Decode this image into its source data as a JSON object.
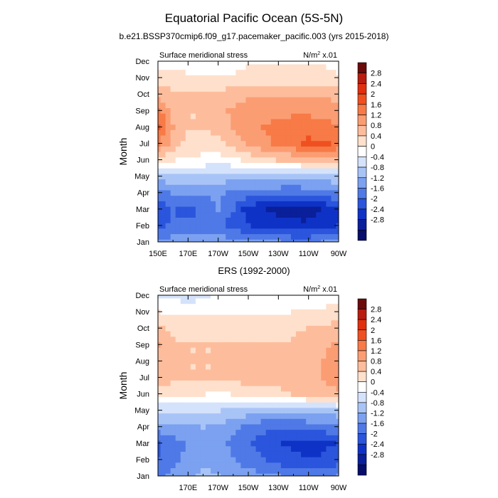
{
  "figure": {
    "title": "Equatorial Pacific Ocean (5S-5N)",
    "subtitle": "b.e21.BSSP370cmip6.f09_g17.pacemaker_pacific.003 (yrs 2015-2018)"
  },
  "chart_data": [
    {
      "type": "heatmap",
      "variable_label": "Surface meridional stress",
      "units_label": "N/m",
      "units_exp": "2",
      "units_scale": " x.01",
      "ylabel": "Month",
      "x_tick_labels": [
        "150E",
        "170E",
        "170W",
        "150W",
        "130W",
        "110W",
        "90W"
      ],
      "y_tick_labels": [
        "Jan",
        "Feb",
        "Mar",
        "Apr",
        "May",
        "Jun",
        "Jul",
        "Aug",
        "Sep",
        "Oct",
        "Nov",
        "Dec"
      ],
      "xlim": [
        150,
        270
      ],
      "levels": [
        -2.8,
        -2.4,
        -2,
        -1.6,
        -1.2,
        -0.8,
        -0.4,
        0,
        0.4,
        0.8,
        1.2,
        1.6,
        2,
        2.4,
        2.8
      ],
      "x": [
        150,
        160,
        170,
        180,
        190,
        200,
        210,
        220,
        230,
        240,
        250,
        260,
        270
      ],
      "months": [
        "Jan",
        "Feb",
        "Mar",
        "Apr",
        "May",
        "Jun",
        "Jul",
        "Aug",
        "Sep",
        "Oct",
        "Nov",
        "Dec"
      ],
      "values": [
        [
          -1.2,
          -1.0,
          -0.9,
          -0.9,
          -0.9,
          -1.0,
          -1.1,
          -1.2,
          -1.2,
          -1.3,
          -1.3,
          -1.2,
          -1.2
        ],
        [
          -1.7,
          -1.5,
          -1.5,
          -1.5,
          -1.5,
          -1.8,
          -2.0,
          -2.1,
          -2.2,
          -2.3,
          -2.3,
          -2.2,
          -2.0
        ],
        [
          -1.9,
          -1.6,
          -1.8,
          -1.4,
          -1.2,
          -1.6,
          -2.2,
          -2.4,
          -2.5,
          -2.6,
          -2.6,
          -2.4,
          -2.1
        ],
        [
          -1.4,
          -1.2,
          -1.2,
          -1.2,
          -1.1,
          -1.3,
          -1.4,
          -1.5,
          -1.5,
          -1.5,
          -1.4,
          -1.3,
          -1.3
        ],
        [
          -0.6,
          -0.5,
          -0.5,
          -0.6,
          -0.6,
          -0.6,
          -0.6,
          -0.6,
          -0.6,
          -0.7,
          -0.7,
          -0.6,
          -0.5
        ],
        [
          0.6,
          0.4,
          0.3,
          0.3,
          0.2,
          0.3,
          0.5,
          0.7,
          0.8,
          0.9,
          1.0,
          1.0,
          0.9
        ],
        [
          1.6,
          1.0,
          0.7,
          0.6,
          0.7,
          0.9,
          1.3,
          1.5,
          1.7,
          1.9,
          2.1,
          2.1,
          1.9
        ],
        [
          2.1,
          1.2,
          0.8,
          0.8,
          0.9,
          1.3,
          1.5,
          1.6,
          1.7,
          1.8,
          1.8,
          1.7,
          1.6
        ],
        [
          1.7,
          1.1,
          0.8,
          0.8,
          1.0,
          1.3,
          1.4,
          1.5,
          1.5,
          1.5,
          1.5,
          1.5,
          1.4
        ],
        [
          1.1,
          0.9,
          0.8,
          0.8,
          0.9,
          1.0,
          1.1,
          1.1,
          1.1,
          1.1,
          1.1,
          1.1,
          1.0
        ],
        [
          0.6,
          0.6,
          0.5,
          0.5,
          0.5,
          0.5,
          0.6,
          0.6,
          0.6,
          0.6,
          0.6,
          0.6,
          0.5
        ],
        [
          0.1,
          0.2,
          0.2,
          0.2,
          0.2,
          0.2,
          0.3,
          0.3,
          0.3,
          0.3,
          0.3,
          0.3,
          0.2
        ]
      ]
    },
    {
      "type": "heatmap",
      "title": "ERS (1992-2000)",
      "variable_label": "Surface meridional stress",
      "units_label": "N/m",
      "units_exp": "2",
      "units_scale": " x.01",
      "ylabel": "Month",
      "x_tick_labels": [
        "",
        "170E",
        "170W",
        "150W",
        "130W",
        "110W",
        "90W"
      ],
      "y_tick_labels": [
        "Jan",
        "Feb",
        "Mar",
        "Apr",
        "May",
        "Jun",
        "Jul",
        "Aug",
        "Sep",
        "Oct",
        "Nov",
        "Dec"
      ],
      "xlim": [
        150,
        270
      ],
      "levels": [
        -2.8,
        -2.4,
        -2,
        -1.6,
        -1.2,
        -0.8,
        -0.4,
        0,
        0.4,
        0.8,
        1.2,
        1.6,
        2,
        2.4,
        2.8
      ],
      "x": [
        150,
        160,
        170,
        180,
        190,
        200,
        210,
        220,
        230,
        240,
        250,
        260,
        270
      ],
      "months": [
        "Jan",
        "Feb",
        "Mar",
        "Apr",
        "May",
        "Jun",
        "Jul",
        "Aug",
        "Sep",
        "Oct",
        "Nov",
        "Dec"
      ],
      "values": [
        [
          -1.3,
          -1.0,
          -0.9,
          -0.7,
          -0.8,
          -0.9,
          -1.0,
          -1.1,
          -1.2,
          -1.3,
          -1.3,
          -1.3,
          -1.2
        ],
        [
          -1.6,
          -1.3,
          -1.1,
          -0.9,
          -1.0,
          -1.2,
          -1.4,
          -1.6,
          -1.8,
          -1.9,
          -2.0,
          -1.9,
          -1.8
        ],
        [
          -1.7,
          -1.4,
          -1.2,
          -0.9,
          -1.0,
          -1.3,
          -1.6,
          -1.8,
          -2.0,
          -2.1,
          -2.2,
          -2.1,
          -2.0
        ],
        [
          -1.0,
          -0.9,
          -0.9,
          -0.8,
          -0.9,
          -1.1,
          -1.3,
          -1.5,
          -1.6,
          -1.6,
          -1.5,
          -1.4,
          -1.3
        ],
        [
          -0.3,
          -0.3,
          -0.3,
          -0.4,
          -0.4,
          -0.5,
          -0.6,
          -0.7,
          -0.7,
          -0.7,
          -0.6,
          -0.6,
          -0.5
        ],
        [
          0.6,
          0.5,
          0.4,
          0.4,
          0.3,
          0.4,
          0.5,
          0.6,
          0.7,
          0.8,
          0.9,
          1.0,
          1.1
        ],
        [
          1.0,
          0.9,
          0.8,
          0.8,
          0.8,
          0.9,
          1.0,
          1.0,
          1.0,
          1.1,
          1.1,
          1.2,
          1.5
        ],
        [
          1.1,
          0.9,
          0.8,
          0.8,
          0.8,
          0.9,
          0.9,
          0.9,
          0.9,
          1.0,
          1.1,
          1.2,
          1.4
        ],
        [
          1.2,
          0.9,
          0.8,
          0.8,
          0.8,
          0.8,
          0.8,
          0.8,
          0.8,
          0.9,
          1.0,
          1.1,
          1.3
        ],
        [
          0.9,
          0.7,
          0.6,
          0.6,
          0.6,
          0.6,
          0.6,
          0.6,
          0.6,
          0.7,
          0.8,
          0.9,
          1.0
        ],
        [
          0.4,
          0.3,
          0.3,
          0.3,
          0.3,
          0.3,
          0.3,
          0.3,
          0.3,
          0.4,
          0.5,
          0.5,
          0.6
        ],
        [
          -0.2,
          -0.1,
          -0.2,
          -0.1,
          0.1,
          0.1,
          0.1,
          0.1,
          0.1,
          0.1,
          0.2,
          0.2,
          0.2
        ]
      ]
    }
  ],
  "colorbar": {
    "labels": [
      "2.8",
      "2.4",
      "2",
      "1.6",
      "1.2",
      "0.8",
      "0.4",
      "0",
      "-0.4",
      "-0.8",
      "-1.2",
      "-1.6",
      "-2",
      "-2.4",
      "-2.8"
    ],
    "colors": [
      "#6b0a0a",
      "#b81d0f",
      "#e0300f",
      "#f0501f",
      "#f77a47",
      "#fb9d73",
      "#fdbd9c",
      "#fee0cc",
      "#ffffff",
      "#d4e2fb",
      "#a8c4f7",
      "#7ba1f0",
      "#4f79e6",
      "#2a55dc",
      "#0f32c6",
      "#0a1f9a",
      "#070d6a"
    ]
  }
}
